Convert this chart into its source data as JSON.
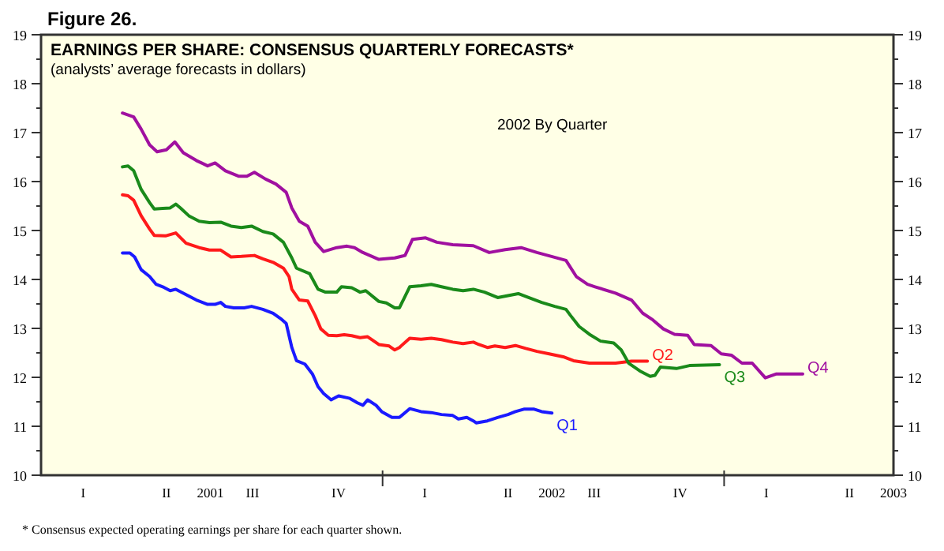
{
  "chart_data": {
    "type": "line",
    "title": "Figure 26.",
    "subtitle": "EARNINGS PER SHARE: CONSENSUS QUARTERLY FORECASTS*",
    "annotations": [
      "(analysts’ average forecasts in dollars)",
      "2002 By Quarter",
      "*  Consensus expected operating earnings per share for each quarter shown."
    ],
    "xlim": [
      "2001-01-01",
      "2003-07-01"
    ],
    "xticks": [
      {
        "value": "2001-02-15",
        "label": "I"
      },
      {
        "value": "2001-05-15",
        "label": "II"
      },
      {
        "value": "2001-08-15",
        "label": "III"
      },
      {
        "value": "2001-11-15",
        "label": "IV"
      },
      {
        "value": "2002-01-01",
        "label": null
      },
      {
        "value": "2002-02-15",
        "label": "I"
      },
      {
        "value": "2002-05-15",
        "label": "II"
      },
      {
        "value": "2002-08-15",
        "label": "III"
      },
      {
        "value": "2002-11-15",
        "label": "IV"
      },
      {
        "value": "2003-01-01",
        "label": null
      },
      {
        "value": "2003-02-15",
        "label": "I"
      },
      {
        "value": "2003-05-15",
        "label": "II"
      },
      {
        "value": "2001-07-01",
        "label": "2001"
      },
      {
        "value": "2002-07-01",
        "label": "2002"
      },
      {
        "value": "2003-07-01",
        "label": "2003"
      }
    ],
    "ylim": [
      10,
      19
    ],
    "yticks": [
      10,
      {
        "value": 10.5,
        "label": null
      },
      11,
      {
        "value": 11.5,
        "label": null
      },
      12,
      {
        "value": 12.5,
        "label": null
      },
      13,
      {
        "value": 13.5,
        "label": null
      },
      14,
      {
        "value": 14.5,
        "label": null
      },
      15,
      {
        "value": 15.5,
        "label": null
      },
      16,
      {
        "value": 16.5,
        "label": null
      },
      17,
      {
        "value": 17.5,
        "label": null
      },
      18,
      {
        "value": 18.5,
        "label": null
      },
      19
    ],
    "y2lim": [
      10,
      19
    ],
    "y2ticks": [
      10,
      {
        "value": 10.5,
        "label": null
      },
      11,
      {
        "value": 11.5,
        "label": null
      },
      12,
      {
        "value": 12.5,
        "label": null
      },
      13,
      {
        "value": 13.5,
        "label": null
      },
      14,
      {
        "value": 14.5,
        "label": null
      },
      15,
      {
        "value": 15.5,
        "label": null
      },
      16,
      {
        "value": 16.5,
        "label": null
      },
      17,
      {
        "value": 17.5,
        "label": null
      },
      18,
      {
        "value": 18.5,
        "label": null
      },
      19
    ],
    "grid": false,
    "legend": false,
    "marker": "none",
    "line_style": "solid",
    "series": [
      {
        "name": "Q1",
        "color": "#1a1aff",
        "x": [
          "2001-03-29",
          "2001-04-06",
          "2001-04-11",
          "2001-04-18",
          "2001-04-27",
          "2001-05-04",
          "2001-05-11",
          "2001-05-19",
          "2001-05-25",
          "2001-06-05",
          "2001-06-16",
          "2001-06-28",
          "2001-07-06",
          "2001-07-12",
          "2001-07-17",
          "2001-07-26",
          "2001-08-06",
          "2001-08-14",
          "2001-08-26",
          "2001-09-06",
          "2001-09-14",
          "2001-09-20",
          "2001-09-26",
          "2001-10-01",
          "2001-10-10",
          "2001-10-18",
          "2001-10-24",
          "2001-10-30",
          "2001-11-07",
          "2001-11-15",
          "2001-11-27",
          "2001-12-05",
          "2001-12-11",
          "2001-12-16",
          "2001-12-25",
          "2001-12-31",
          "2002-01-11",
          "2002-01-19",
          "2002-01-30",
          "2002-02-11",
          "2002-02-22",
          "2002-03-05",
          "2002-03-17",
          "2002-03-23",
          "2002-04-01",
          "2002-04-08",
          "2002-04-11",
          "2002-04-23",
          "2002-05-04",
          "2002-05-15",
          "2002-05-23",
          "2002-06-01",
          "2002-06-12",
          "2002-06-20",
          "2002-07-01"
        ],
        "values": [
          14.54,
          14.54,
          14.46,
          14.2,
          14.06,
          13.9,
          13.85,
          13.77,
          13.8,
          13.69,
          13.58,
          13.49,
          13.49,
          13.53,
          13.45,
          13.42,
          13.42,
          13.45,
          13.39,
          13.31,
          13.2,
          13.1,
          12.61,
          12.34,
          12.27,
          12.07,
          11.81,
          11.67,
          11.54,
          11.62,
          11.57,
          11.48,
          11.43,
          11.54,
          11.43,
          11.3,
          11.18,
          11.18,
          11.36,
          11.3,
          11.28,
          11.24,
          11.22,
          11.15,
          11.18,
          11.11,
          11.07,
          11.11,
          11.18,
          11.24,
          11.3,
          11.35,
          11.35,
          11.3,
          11.27
        ]
      },
      {
        "name": "Q2",
        "color": "#ff1a1a",
        "x": [
          "2001-03-29",
          "2001-04-04",
          "2001-04-10",
          "2001-04-18",
          "2001-04-27",
          "2001-05-02",
          "2001-05-14",
          "2001-05-25",
          "2001-06-05",
          "2001-06-19",
          "2001-06-30",
          "2001-07-12",
          "2001-07-23",
          "2001-08-03",
          "2001-08-17",
          "2001-08-26",
          "2001-09-06",
          "2001-09-17",
          "2001-09-23",
          "2001-09-26",
          "2001-10-04",
          "2001-10-13",
          "2001-10-21",
          "2001-10-27",
          "2001-11-04",
          "2001-11-13",
          "2001-11-21",
          "2001-11-29",
          "2001-12-08",
          "2001-12-16",
          "2001-12-28",
          "2002-01-08",
          "2002-01-14",
          "2002-01-19",
          "2002-01-30",
          "2002-02-11",
          "2002-02-22",
          "2002-03-05",
          "2002-03-17",
          "2002-03-28",
          "2002-04-08",
          "2002-04-14",
          "2002-04-23",
          "2002-05-01",
          "2002-05-12",
          "2002-05-23",
          "2002-06-03",
          "2002-06-15",
          "2002-06-28",
          "2002-07-13",
          "2002-07-24",
          "2002-08-10",
          "2002-09-07",
          "2002-09-24",
          "2002-10-11"
        ],
        "values": [
          15.73,
          15.71,
          15.62,
          15.3,
          15.03,
          14.9,
          14.89,
          14.95,
          14.74,
          14.65,
          14.6,
          14.6,
          14.46,
          14.47,
          14.49,
          14.42,
          14.35,
          14.23,
          14.06,
          13.8,
          13.58,
          13.56,
          13.26,
          12.99,
          12.86,
          12.85,
          12.87,
          12.85,
          12.81,
          12.83,
          12.67,
          12.64,
          12.56,
          12.61,
          12.8,
          12.78,
          12.8,
          12.77,
          12.72,
          12.69,
          12.72,
          12.67,
          12.61,
          12.64,
          12.61,
          12.65,
          12.59,
          12.53,
          12.48,
          12.42,
          12.34,
          12.29,
          12.29,
          12.33,
          12.33
        ]
      },
      {
        "name": "Q3",
        "color": "#1a8a1a",
        "x": [
          "2001-03-29",
          "2001-04-04",
          "2001-04-10",
          "2001-04-18",
          "2001-04-27",
          "2001-05-02",
          "2001-05-11",
          "2001-05-19",
          "2001-05-25",
          "2001-05-30",
          "2001-06-08",
          "2001-06-19",
          "2001-06-30",
          "2001-07-12",
          "2001-07-23",
          "2001-08-03",
          "2001-08-14",
          "2001-08-26",
          "2001-09-06",
          "2001-09-17",
          "2001-09-26",
          "2001-10-01",
          "2001-10-15",
          "2001-10-24",
          "2001-11-01",
          "2001-11-13",
          "2001-11-18",
          "2001-11-29",
          "2001-12-08",
          "2001-12-14",
          "2001-12-28",
          "2002-01-05",
          "2002-01-14",
          "2002-01-19",
          "2002-01-30",
          "2002-02-11",
          "2002-02-22",
          "2002-03-05",
          "2002-03-17",
          "2002-03-28",
          "2002-04-08",
          "2002-04-20",
          "2002-05-04",
          "2002-05-15",
          "2002-05-26",
          "2002-06-06",
          "2002-06-20",
          "2002-07-04",
          "2002-07-16",
          "2002-07-21",
          "2002-07-30",
          "2002-08-10",
          "2002-08-22",
          "2002-09-05",
          "2002-09-13",
          "2002-09-21",
          "2002-10-03",
          "2002-10-14",
          "2002-10-19",
          "2002-10-25",
          "2002-11-11",
          "2002-11-25",
          "2002-12-27"
        ],
        "values": [
          16.3,
          16.32,
          16.22,
          15.84,
          15.57,
          15.44,
          15.45,
          15.46,
          15.54,
          15.46,
          15.3,
          15.19,
          15.16,
          15.17,
          15.09,
          15.06,
          15.09,
          14.98,
          14.93,
          14.76,
          14.44,
          14.23,
          14.12,
          13.8,
          13.74,
          13.74,
          13.85,
          13.83,
          13.74,
          13.77,
          13.55,
          13.52,
          13.42,
          13.42,
          13.85,
          13.87,
          13.9,
          13.85,
          13.8,
          13.77,
          13.8,
          13.74,
          13.63,
          13.67,
          13.71,
          13.63,
          13.53,
          13.45,
          13.39,
          13.26,
          13.04,
          12.88,
          12.74,
          12.7,
          12.56,
          12.29,
          12.13,
          12.02,
          12.04,
          12.21,
          12.18,
          12.24,
          12.26
        ]
      },
      {
        "name": "Q4",
        "color": "#a010a0",
        "x": [
          "2001-03-29",
          "2001-04-10",
          "2001-04-18",
          "2001-04-27",
          "2001-05-05",
          "2001-05-15",
          "2001-05-24",
          "2001-06-02",
          "2001-06-16",
          "2001-06-28",
          "2001-07-06",
          "2001-07-17",
          "2001-07-31",
          "2001-08-09",
          "2001-08-17",
          "2001-08-29",
          "2001-09-09",
          "2001-09-20",
          "2001-09-26",
          "2001-10-04",
          "2001-10-13",
          "2001-10-21",
          "2001-10-30",
          "2001-11-13",
          "2001-11-24",
          "2001-12-02",
          "2001-12-11",
          "2001-12-28",
          "2002-01-14",
          "2002-01-25",
          "2002-02-02",
          "2002-02-16",
          "2002-02-28",
          "2002-03-17",
          "2002-04-08",
          "2002-04-25",
          "2002-05-12",
          "2002-05-29",
          "2002-06-15",
          "2002-07-16",
          "2002-07-27",
          "2002-08-08",
          "2002-08-16",
          "2002-09-07",
          "2002-09-24",
          "2002-10-06",
          "2002-10-17",
          "2002-10-28",
          "2002-11-09",
          "2002-11-23",
          "2002-11-30",
          "2002-12-18",
          "2002-12-29",
          "2003-01-09",
          "2003-01-20",
          "2003-01-31",
          "2003-02-14",
          "2003-02-26",
          "2003-03-06",
          "2003-03-26"
        ],
        "values": [
          17.4,
          17.32,
          17.07,
          16.75,
          16.61,
          16.65,
          16.81,
          16.59,
          16.43,
          16.32,
          16.38,
          16.22,
          16.11,
          16.11,
          16.19,
          16.05,
          15.95,
          15.78,
          15.46,
          15.19,
          15.09,
          14.76,
          14.57,
          14.65,
          14.68,
          14.65,
          14.55,
          14.41,
          14.44,
          14.49,
          14.82,
          14.85,
          14.76,
          14.71,
          14.69,
          14.55,
          14.61,
          14.65,
          14.55,
          14.39,
          14.06,
          13.9,
          13.85,
          13.72,
          13.58,
          13.31,
          13.17,
          12.99,
          12.88,
          12.86,
          12.67,
          12.65,
          12.48,
          12.45,
          12.29,
          12.29,
          11.99,
          12.07,
          12.07,
          12.07
        ]
      }
    ]
  }
}
